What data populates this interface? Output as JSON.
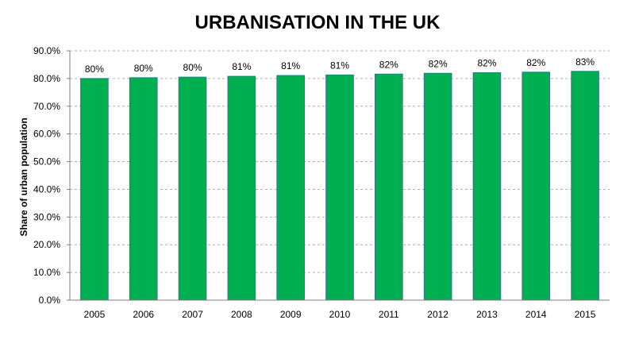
{
  "chart_data": {
    "type": "bar",
    "title": "URBANISATION IN THE UK",
    "xlabel": "",
    "ylabel": "Share of urban population",
    "categories": [
      "2005",
      "2006",
      "2007",
      "2008",
      "2009",
      "2010",
      "2011",
      "2012",
      "2013",
      "2014",
      "2015"
    ],
    "values": [
      80.0,
      80.3,
      80.5,
      80.8,
      81.1,
      81.3,
      81.6,
      81.9,
      82.1,
      82.3,
      82.6
    ],
    "data_labels": [
      "80%",
      "80%",
      "80%",
      "81%",
      "81%",
      "81%",
      "82%",
      "82%",
      "82%",
      "82%",
      "83%"
    ],
    "ylim": [
      0,
      90
    ],
    "y_ticks": [
      0,
      10,
      20,
      30,
      40,
      50,
      60,
      70,
      80,
      90
    ],
    "y_tick_labels": [
      "0.0%",
      "10.0%",
      "20.0%",
      "30.0%",
      "40.0%",
      "50.0%",
      "60.0%",
      "70.0%",
      "80.0%",
      "90.0%"
    ],
    "grid": true,
    "grid_style": "dashed",
    "legend": "none",
    "colors": {
      "bar_fill": "#00b050",
      "bar_stroke": "#3a6e9a",
      "grid": "#b0b0b0",
      "axis": "#7f7f7f",
      "background": "#ffffff"
    }
  }
}
